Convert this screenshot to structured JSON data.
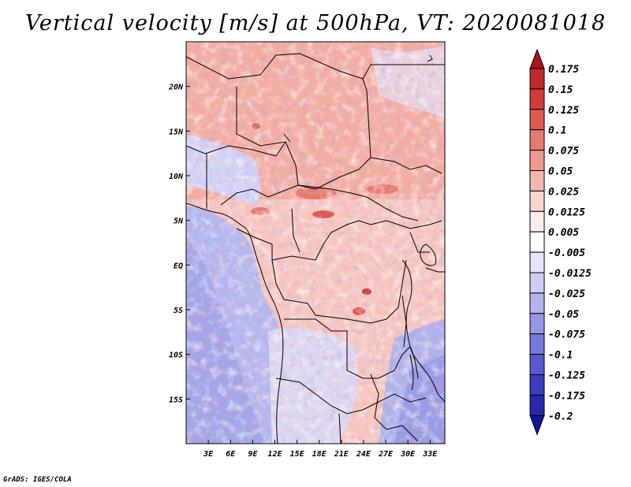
{
  "title": "Vertical velocity [m/s] at 500hPa, VT: 2020081018",
  "credit": "GrADS: IGES/COLA",
  "map": {
    "lat_range": [
      -20,
      25
    ],
    "lon_range": [
      0,
      35
    ],
    "lat_labels": [
      "20N",
      "15N",
      "10N",
      "5N",
      "EQ",
      "5S",
      "10S",
      "15S"
    ],
    "lat_values": [
      20,
      15,
      10,
      5,
      0,
      -5,
      -10,
      -15
    ],
    "lon_labels": [
      "3E",
      "6E",
      "9E",
      "12E",
      "15E",
      "18E",
      "21E",
      "24E",
      "27E",
      "30E",
      "33E"
    ],
    "lon_values": [
      3,
      6,
      9,
      12,
      15,
      18,
      21,
      24,
      27,
      30,
      33
    ]
  },
  "colorbar": {
    "labels": [
      "0.175",
      "0.15",
      "0.125",
      "0.1",
      "0.075",
      "0.05",
      "0.025",
      "0.0125",
      "0.005",
      "-0.005",
      "-0.0125",
      "-0.025",
      "-0.05",
      "-0.075",
      "-0.1",
      "-0.125",
      "-0.175",
      "-0.2"
    ],
    "colors": [
      "#a8141c",
      "#be2a2a",
      "#cf3d37",
      "#dc5a50",
      "#e47a6e",
      "#ec9a8e",
      "#f2b8ae",
      "#f8d6d0",
      "#fcecea",
      "#ffffff",
      "#e6e6fb",
      "#cdcdf5",
      "#b2b2ef",
      "#9696e6",
      "#7878dc",
      "#5a5acf",
      "#3c3cbf",
      "#2828ad",
      "#14149a"
    ],
    "top_arrow_color": "#a8141c",
    "bottom_arrow_color": "#14149a"
  }
}
